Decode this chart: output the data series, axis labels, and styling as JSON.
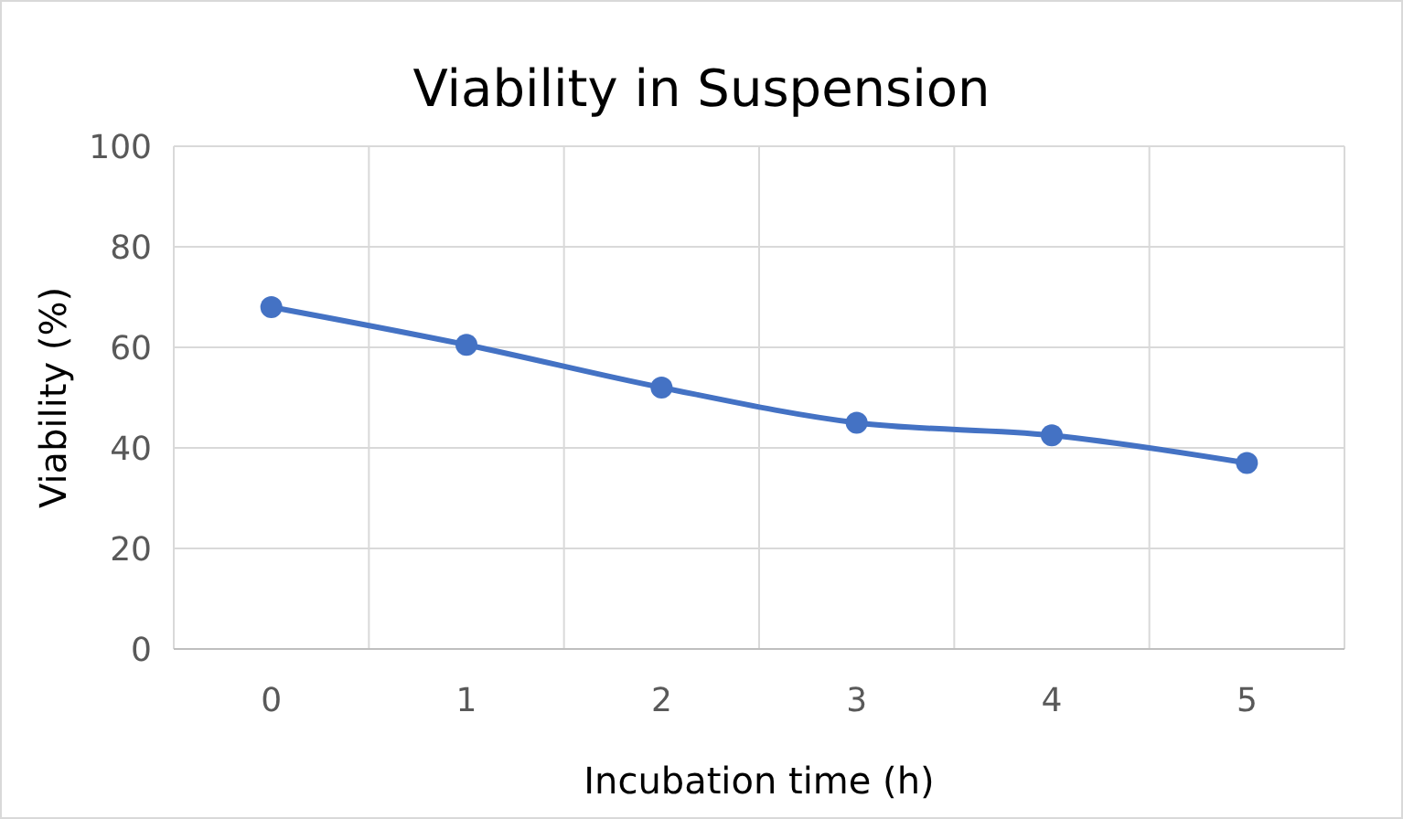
{
  "chart_data": {
    "type": "line",
    "title": "Viability in Suspension",
    "xlabel": "Incubation time (h)",
    "ylabel": "Viability (%)",
    "categories": [
      "0",
      "1",
      "2",
      "3",
      "4",
      "5"
    ],
    "series": [
      {
        "color": "#4472c4",
        "values": [
          68,
          60.5,
          52,
          45,
          42.5,
          37
        ]
      }
    ],
    "ylim": [
      0,
      100
    ],
    "yticks": [
      0,
      20,
      40,
      60,
      80,
      100
    ],
    "grid": true,
    "marker": "circle",
    "line_style": "solid"
  }
}
